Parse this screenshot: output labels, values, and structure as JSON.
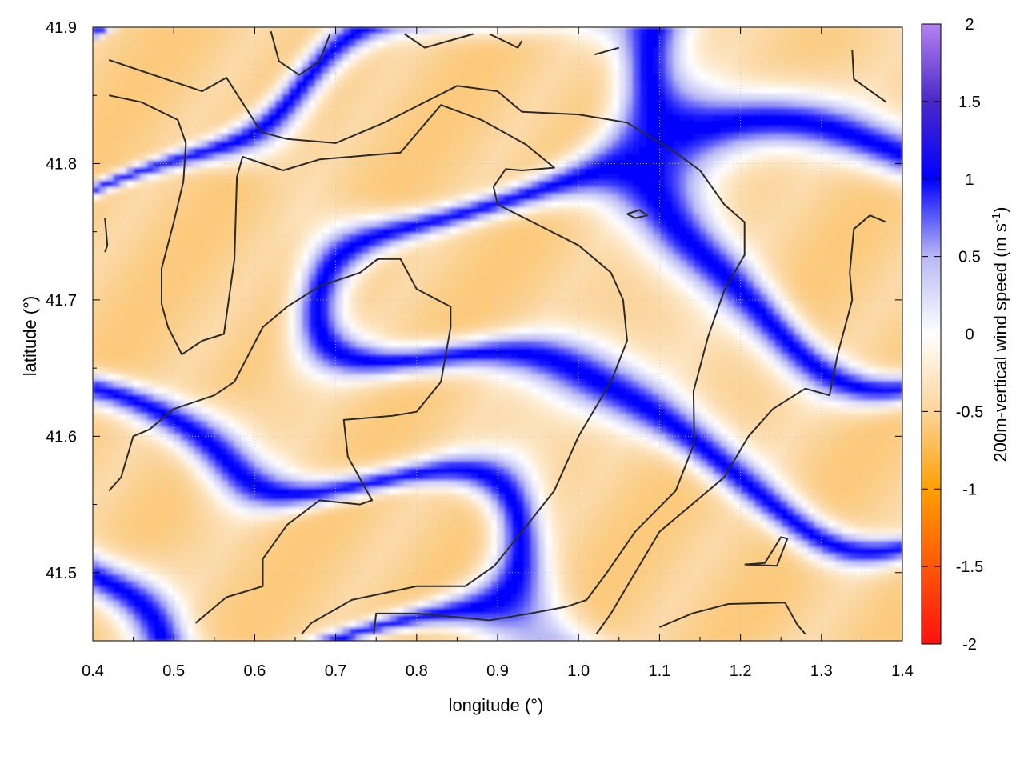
{
  "chart_data": {
    "type": "heatmap",
    "title": "",
    "xlabel": "longitude (°)",
    "ylabel": "latitude (°)",
    "xlim": [
      0.4,
      1.4
    ],
    "ylim": [
      41.45,
      41.9
    ],
    "x_ticks": [
      "0.4",
      "0.5",
      "0.6",
      "0.7",
      "0.8",
      "0.9",
      "1.0",
      "1.1",
      "1.2",
      "1.3",
      "1.4"
    ],
    "y_ticks": [
      "41.5",
      "41.6",
      "41.7",
      "41.8",
      "41.9"
    ],
    "colorbar": {
      "label": "200m-vertical wind speed (m s",
      "label_superscript": "-1",
      "label_suffix": ")",
      "range": [
        -2,
        2
      ],
      "ticks": [
        "2",
        "1.5",
        "1",
        "0.5",
        "0",
        "-0.5",
        "-1",
        "-1.5",
        "-2"
      ],
      "colors": [
        {
          "value": -2,
          "color": "#ff1010"
        },
        {
          "value": -1,
          "color": "#ffa000"
        },
        {
          "value": -0.5,
          "color": "#fbd49a"
        },
        {
          "value": 0,
          "color": "#ffffff"
        },
        {
          "value": 0.5,
          "color": "#b8b8f4"
        },
        {
          "value": 1,
          "color": "#0000ff"
        },
        {
          "value": 1.5,
          "color": "#4a28c8"
        },
        {
          "value": 2,
          "color": "#b482f0"
        }
      ]
    },
    "grid": true,
    "contours": [
      [
        [
          0.42,
          41.876
        ],
        [
          0.47,
          41.866
        ],
        [
          0.535,
          41.853
        ],
        [
          0.565,
          41.863
        ],
        [
          0.59,
          41.84
        ],
        [
          0.608,
          41.823
        ],
        [
          0.64,
          41.818
        ],
        [
          0.7,
          41.815
        ],
        [
          0.76,
          41.83
        ],
        [
          0.8,
          41.842
        ],
        [
          0.85,
          41.857
        ],
        [
          0.9,
          41.853
        ],
        [
          0.93,
          41.838
        ],
        [
          1.0,
          41.836
        ],
        [
          1.06,
          41.83
        ],
        [
          1.12,
          41.808
        ],
        [
          1.15,
          41.795
        ],
        [
          1.18,
          41.77
        ],
        [
          1.205,
          41.757
        ],
        [
          1.205,
          41.733
        ],
        [
          1.18,
          41.707
        ],
        [
          1.16,
          41.673
        ],
        [
          1.142,
          41.633
        ],
        [
          1.143,
          41.595
        ],
        [
          1.12,
          41.56
        ],
        [
          1.07,
          41.53
        ],
        [
          1.035,
          41.5
        ],
        [
          1.01,
          41.48
        ],
        [
          0.985,
          41.475
        ],
        [
          0.94,
          41.47
        ],
        [
          0.89,
          41.465
        ],
        [
          0.8,
          41.47
        ],
        [
          0.75,
          41.47
        ],
        [
          0.747,
          41.455
        ]
      ],
      [
        [
          0.42,
          41.85
        ],
        [
          0.46,
          41.845
        ],
        [
          0.505,
          41.832
        ],
        [
          0.515,
          41.815
        ],
        [
          0.512,
          41.787
        ],
        [
          0.5,
          41.757
        ],
        [
          0.485,
          41.723
        ],
        [
          0.485,
          41.697
        ],
        [
          0.493,
          41.68
        ],
        [
          0.51,
          41.66
        ],
        [
          0.535,
          41.67
        ],
        [
          0.562,
          41.675
        ],
        [
          0.575,
          41.73
        ],
        [
          0.578,
          41.79
        ],
        [
          0.585,
          41.805
        ],
        [
          0.635,
          41.795
        ],
        [
          0.68,
          41.803
        ],
        [
          0.78,
          41.808
        ],
        [
          0.83,
          41.843
        ],
        [
          0.88,
          41.832
        ],
        [
          0.935,
          41.814
        ],
        [
          0.97,
          41.797
        ],
        [
          0.93,
          41.795
        ],
        [
          0.91,
          41.796
        ],
        [
          0.895,
          41.783
        ],
        [
          0.9,
          41.77
        ],
        [
          0.95,
          41.755
        ],
        [
          1.0,
          41.74
        ],
        [
          1.04,
          41.72
        ],
        [
          1.055,
          41.7
        ],
        [
          1.06,
          41.67
        ],
        [
          1.04,
          41.64
        ],
        [
          1.0,
          41.6
        ],
        [
          0.97,
          41.56
        ],
        [
          0.93,
          41.53
        ],
        [
          0.896,
          41.505
        ],
        [
          0.86,
          41.49
        ],
        [
          0.8,
          41.49
        ],
        [
          0.72,
          41.48
        ],
        [
          0.67,
          41.463
        ],
        [
          0.658,
          41.455
        ]
      ],
      [
        [
          0.527,
          41.463
        ],
        [
          0.565,
          41.482
        ],
        [
          0.61,
          41.49
        ],
        [
          0.61,
          41.51
        ],
        [
          0.64,
          41.535
        ],
        [
          0.68,
          41.553
        ],
        [
          0.73,
          41.55
        ],
        [
          0.745,
          41.553
        ],
        [
          0.715,
          41.585
        ],
        [
          0.71,
          41.612
        ],
        [
          0.77,
          41.615
        ],
        [
          0.8,
          41.618
        ],
        [
          0.83,
          41.64
        ],
        [
          0.842,
          41.68
        ],
        [
          0.842,
          41.695
        ],
        [
          0.8,
          41.708
        ],
        [
          0.78,
          41.73
        ],
        [
          0.752,
          41.73
        ],
        [
          0.73,
          41.72
        ],
        [
          0.68,
          41.71
        ],
        [
          0.64,
          41.695
        ],
        [
          0.61,
          41.68
        ],
        [
          0.575,
          41.64
        ],
        [
          0.55,
          41.63
        ],
        [
          0.5,
          41.62
        ],
        [
          0.47,
          41.605
        ],
        [
          0.45,
          41.6
        ],
        [
          0.435,
          41.57
        ],
        [
          0.42,
          41.56
        ]
      ],
      [
        [
          1.1,
          41.46
        ],
        [
          1.14,
          41.47
        ],
        [
          1.185,
          41.477
        ],
        [
          1.255,
          41.478
        ],
        [
          1.27,
          41.462
        ],
        [
          1.28,
          41.455
        ]
      ],
      [
        [
          1.205,
          41.506
        ],
        [
          1.245,
          41.505
        ],
        [
          1.258,
          41.525
        ],
        [
          1.25,
          41.526
        ],
        [
          1.23,
          41.507
        ],
        [
          1.205,
          41.506
        ]
      ],
      [
        [
          1.338,
          41.883
        ],
        [
          1.34,
          41.862
        ],
        [
          1.38,
          41.845
        ]
      ],
      [
        [
          1.38,
          41.757
        ],
        [
          1.36,
          41.762
        ],
        [
          1.34,
          41.752
        ],
        [
          1.335,
          41.72
        ],
        [
          1.338,
          41.7
        ],
        [
          1.32,
          41.66
        ],
        [
          1.31,
          41.63
        ],
        [
          1.28,
          41.635
        ],
        [
          1.24,
          41.62
        ],
        [
          1.21,
          41.6
        ],
        [
          1.18,
          41.57
        ],
        [
          1.14,
          41.55
        ],
        [
          1.1,
          41.53
        ],
        [
          1.07,
          41.5
        ],
        [
          1.04,
          41.47
        ],
        [
          1.022,
          41.455
        ]
      ],
      [
        [
          0.62,
          41.897
        ],
        [
          0.63,
          41.875
        ],
        [
          0.655,
          41.865
        ],
        [
          0.68,
          41.875
        ],
        [
          0.693,
          41.895
        ]
      ],
      [
        [
          0.785,
          41.895
        ],
        [
          0.81,
          41.885
        ],
        [
          0.87,
          41.895
        ]
      ],
      [
        [
          0.89,
          41.895
        ],
        [
          0.925,
          41.885
        ],
        [
          0.93,
          41.89
        ]
      ],
      [
        [
          1.02,
          41.88
        ],
        [
          1.05,
          41.885
        ]
      ],
      [
        [
          1.06,
          41.763
        ],
        [
          1.075,
          41.766
        ],
        [
          1.085,
          41.762
        ],
        [
          1.07,
          41.76
        ],
        [
          1.06,
          41.763
        ]
      ],
      [
        [
          0.415,
          41.76
        ],
        [
          0.418,
          41.74
        ],
        [
          0.415,
          41.735
        ]
      ]
    ]
  }
}
